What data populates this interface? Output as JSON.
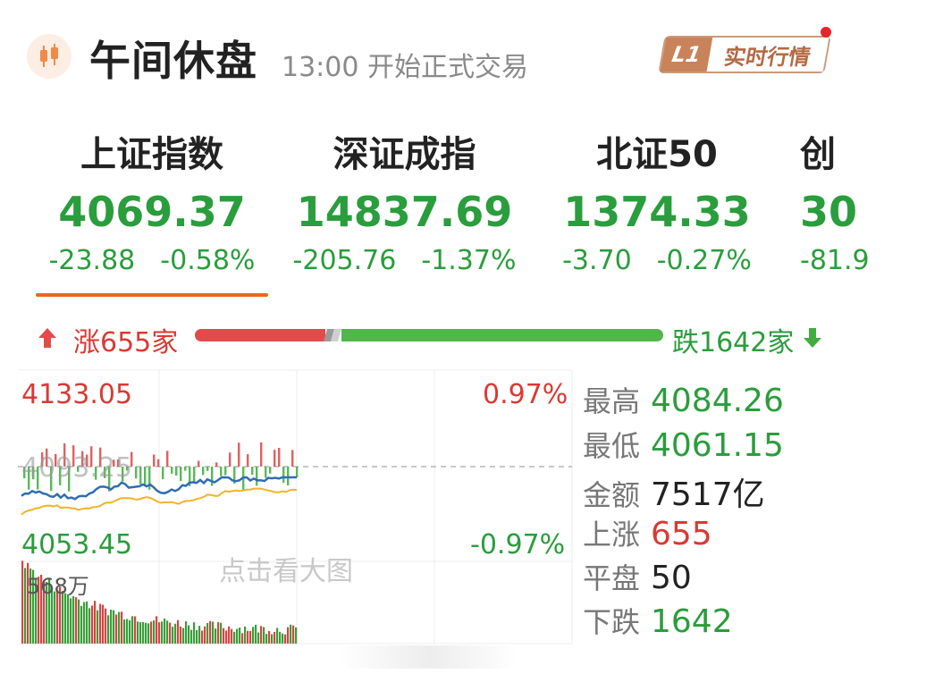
{
  "header": {
    "title": "午间休盘",
    "subtitle": "13:00 开始正式交易",
    "badge_level": "L1",
    "badge_text": "实时行情"
  },
  "indices": [
    {
      "name": "上证指数",
      "value": "4069.37",
      "change": "-23.88",
      "pct": "-0.58%"
    },
    {
      "name": "深证成指",
      "value": "14837.69",
      "change": "-205.76",
      "pct": "-1.37%"
    },
    {
      "name": "北证50",
      "value": "1374.33",
      "change": "-3.70",
      "pct": "-0.27%"
    },
    {
      "name": "创",
      "value": "30",
      "change": "-81.9",
      "pct": ""
    }
  ],
  "breadth": {
    "up_label": "涨655家",
    "down_label": "跌1642家",
    "up_count": 655,
    "down_count": 1642
  },
  "chart": {
    "high_price": "4133.05",
    "high_pct": "0.97%",
    "low_price": "4053.45",
    "low_pct": "-0.97%",
    "prev_close": "4093.25",
    "volume_label": "568万",
    "watermark": "点击看大图"
  },
  "stats": [
    {
      "label": "最高",
      "value": "4084.26",
      "color": "green"
    },
    {
      "label": "最低",
      "value": "4061.15",
      "color": "green"
    },
    {
      "label": "金额",
      "value": "7517亿",
      "color": "dark"
    },
    {
      "label": "上涨",
      "value": "655",
      "color": "red"
    },
    {
      "label": "平盘",
      "value": "50",
      "color": "dark"
    },
    {
      "label": "下跌",
      "value": "1642",
      "color": "green"
    }
  ],
  "colors": {
    "up": "#d93a34",
    "down": "#2a9d3c",
    "accent": "#e8691f",
    "price_line": "#2f6db3",
    "avg_line": "#f0b429"
  }
}
